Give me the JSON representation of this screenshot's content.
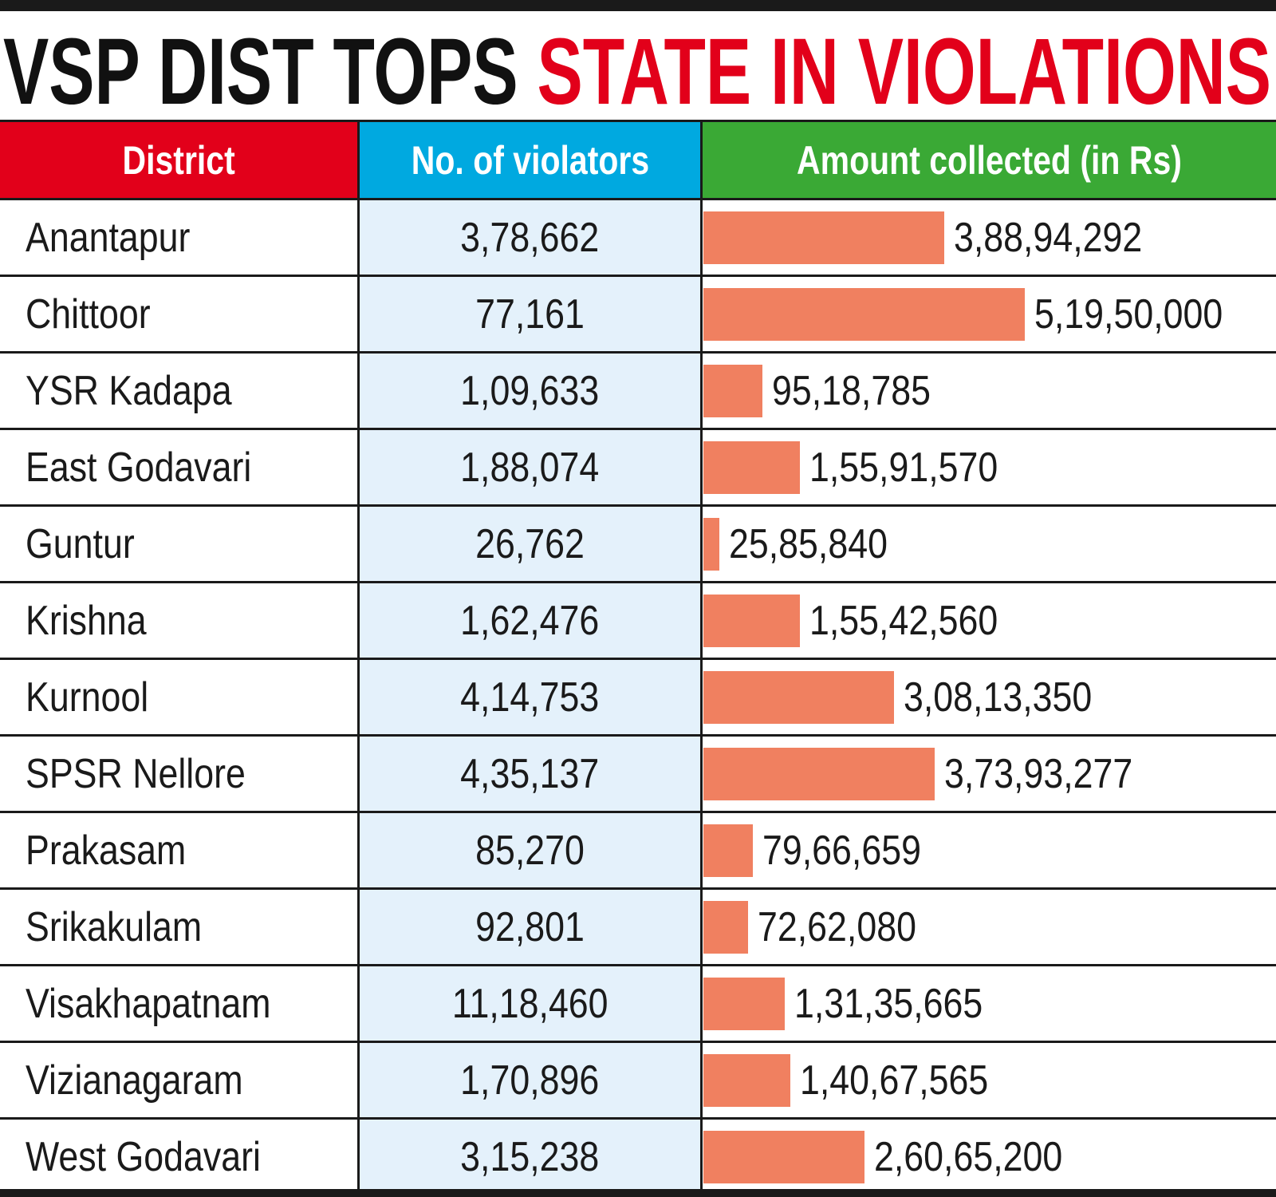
{
  "title": {
    "part1": "VSP DIST TOPS ",
    "part2": "STATE IN VIOLATIONS"
  },
  "colors": {
    "title_black": "#111111",
    "title_red": "#e2001a",
    "header_district": "#e2001a",
    "header_violators": "#00a9e0",
    "header_amount": "#3aa935",
    "violators_bg": "#e4f1fb",
    "bar": "#f08060"
  },
  "chart_data": {
    "type": "bar",
    "title": "VSP DIST TOPS STATE IN VIOLATIONS",
    "columns": [
      "District",
      "No. of violators",
      "Amount collected (in Rs)"
    ],
    "categories": [
      "Anantapur",
      "Chittoor",
      "YSR Kadapa",
      "East Godavari",
      "Guntur",
      "Krishna",
      "Kurnool",
      "SPSR Nellore",
      "Prakasam",
      "Srikakulam",
      "Visakhapatnam",
      "Vizianagaram",
      "West Godavari"
    ],
    "violators_labels": [
      "3,78,662",
      "77,161",
      "1,09,633",
      "1,88,074",
      "26,762",
      "1,62,476",
      "4,14,753",
      "4,35,137",
      "85,270",
      "92,801",
      "11,18,460",
      "1,70,896",
      "3,15,238"
    ],
    "violators": [
      378662,
      77161,
      109633,
      188074,
      26762,
      162476,
      414753,
      435137,
      85270,
      92801,
      1118460,
      170896,
      315238
    ],
    "amount_labels": [
      "3,88,94,292",
      "5,19,50,000",
      "95,18,785",
      "1,55,91,570",
      "25,85,840",
      "1,55,42,560",
      "3,08,13,350",
      "3,73,93,277",
      "79,66,659",
      "72,62,080",
      "1,31,35,665",
      "1,40,67,565",
      "2,60,65,200"
    ],
    "values": [
      38894292,
      51950000,
      9518785,
      15591570,
      2585840,
      15542560,
      30813350,
      37393277,
      7966659,
      7262080,
      13135665,
      14067565,
      26065200
    ],
    "xlim": [
      0,
      51950000
    ]
  }
}
